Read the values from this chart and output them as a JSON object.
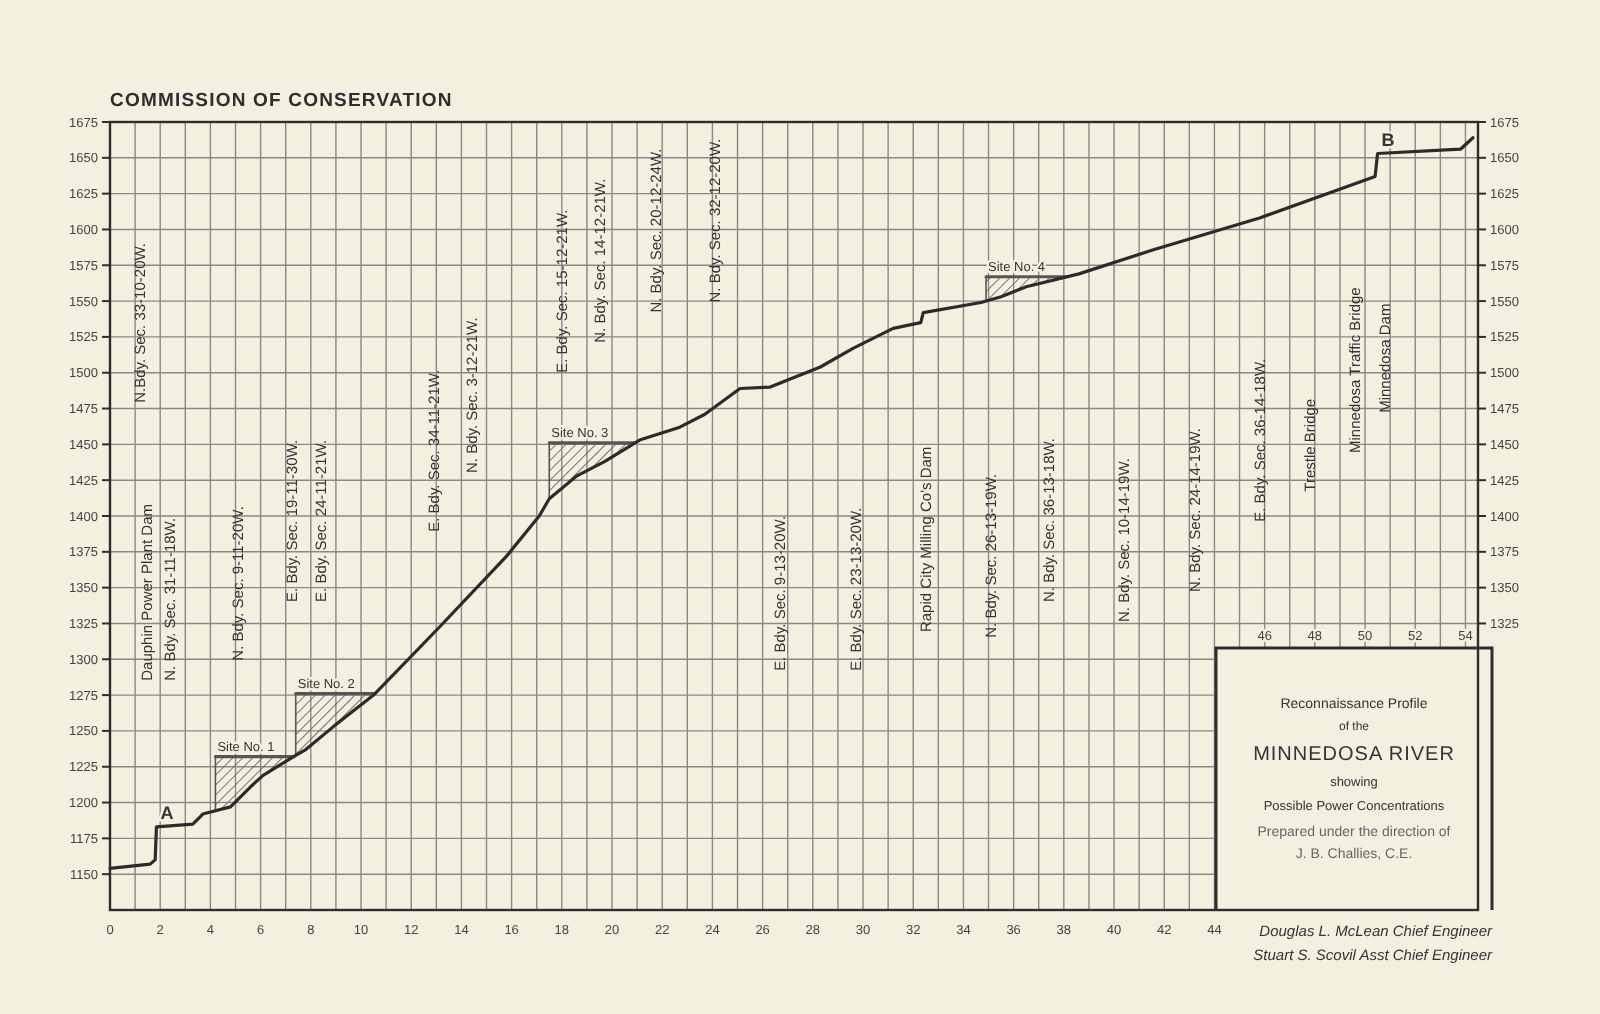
{
  "chart_data": {
    "type": "line",
    "title": "COMMISSION OF CONSERVATION",
    "x": [
      0,
      1.6,
      1.8,
      1.85,
      3.3,
      3.7,
      4.8,
      5.6,
      6.1,
      7.4,
      7.8,
      8.9,
      10.5,
      13.1,
      15.8,
      17.1,
      17.5,
      18.6,
      19.7,
      21.1,
      22.7,
      23.7,
      25.1,
      26.3,
      27.3,
      28.3,
      29.6,
      31.2,
      32.3,
      32.4,
      34.7,
      35.5,
      36.5,
      38.6,
      41.6,
      45.8,
      50.4,
      50.5,
      53.8,
      54.3
    ],
    "series": [
      {
        "color": "#2b2b2b",
        "values": [
          1154,
          1157,
          1160,
          1183,
          1185,
          1192,
          1197,
          1211,
          1219,
          1233,
          1237,
          1253,
          1275,
          1322,
          1372,
          1400,
          1412,
          1428,
          1438,
          1453,
          1462,
          1471,
          1489,
          1490,
          1497,
          1504,
          1517,
          1531,
          1535,
          1542,
          1549,
          1553,
          1560,
          1569,
          1586,
          1608,
          1637,
          1653,
          1656,
          1664
        ]
      },
      {
        "type": "line",
        "name": "Site No. 1",
        "color": "#555555",
        "x": [
          4.2,
          4.8,
          5.6,
          6.1,
          7.3
        ],
        "values": [
          1232,
          1232,
          1232,
          1232,
          1232
        ],
        "lower": [
          1194,
          1197,
          1211,
          1219,
          1232
        ],
        "upper": [
          1232,
          1232,
          1232,
          1232,
          1232
        ]
      },
      {
        "type": "line",
        "name": "Site No. 2",
        "color": "#555555",
        "x": [
          7.4,
          7.8,
          8.9,
          10.55
        ],
        "values": [
          1276,
          1276,
          1276,
          1276
        ],
        "lower": [
          1233,
          1237,
          1253,
          1276
        ],
        "upper": [
          1276,
          1276,
          1276,
          1276
        ]
      },
      {
        "type": "line",
        "name": "Site No. 3",
        "color": "#555555",
        "x": [
          17.5,
          18.6,
          19.7,
          20.9
        ],
        "values": [
          1451,
          1451,
          1451,
          1451
        ],
        "lower": [
          1412,
          1428,
          1438,
          1451
        ],
        "upper": [
          1451,
          1451,
          1451,
          1451
        ]
      },
      {
        "type": "line",
        "name": "Site No. 4",
        "color": "#555555",
        "x": [
          34.9,
          35.5,
          36.5,
          38.1
        ],
        "values": [
          1567,
          1567,
          1567,
          1567
        ],
        "lower": [
          1550,
          1553,
          1560,
          1567
        ],
        "upper": [
          1567,
          1567,
          1567,
          1567
        ]
      }
    ],
    "xlim": [
      0,
      54.5
    ],
    "ylim": [
      1125,
      1675
    ],
    "xticks": [
      0,
      2,
      4,
      6,
      8,
      10,
      12,
      14,
      16,
      18,
      20,
      22,
      24,
      26,
      28,
      30,
      32,
      34,
      36,
      38,
      40,
      42,
      44
    ],
    "x2lim": [
      0,
      54.5
    ],
    "x2ticks": [
      46,
      48,
      50,
      52,
      54
    ],
    "yticks": [
      1150,
      1175,
      1200,
      1225,
      1250,
      1275,
      1300,
      1325,
      1350,
      1375,
      1400,
      1425,
      1450,
      1475,
      1500,
      1525,
      1550,
      1575,
      1600,
      1625,
      1650,
      1675
    ],
    "y2lim": [
      1125,
      1675
    ],
    "y2ticks": [
      1325,
      1350,
      1375,
      1400,
      1425,
      1450,
      1475,
      1500,
      1525,
      1550,
      1575,
      1600,
      1625,
      1650,
      1675
    ],
    "grid": true,
    "marker": "none",
    "line_style": "solid",
    "annotations": [
      {
        "text": "A",
        "x": 1.85,
        "y": 1183
      },
      {
        "text": "B",
        "x": 50.5,
        "y": 1653
      },
      "N.Bdy. Sec. 33-10-20W.",
      "Dauphin Power Plant Dam",
      "N. Bdy. Sec. 31-11-18W.",
      "N. Bdy. Sec. 9-11-20W.",
      "E. Bdy. Sec. 19-11-30W.",
      "E. Bdy. Sec. 24-11-21W.",
      "E. Bdy. Sec. 34-11-21W.",
      "N. Bdy. Sec. 3-12-21W.",
      "E. Bdy. Sec. 15-12-21W.",
      "N. Bdy. Sec. 14-12-21W.",
      "N. Bdy. Sec. 20-12-24W.",
      "N. Bdy. Sec. 32-12-20W.",
      "E. Bdy. Sec. 9-13-20W.",
      "E. Bdy. Sec. 23-13-20W.",
      "Rapid City Milling Co's Dam",
      "N. Bdy. Sec. 26-13-19W.",
      "N. Bdy. Sec. 36-13-18W.",
      "N. Bdy. Sec. 10-14-19W.",
      "N. Bdy. Sec. 24-14-19W.",
      "E. Bdy. Sec. 36-14-18W.",
      "Trestle Bridge",
      "Minnedosa Traffic Bridge",
      "Minnedosa Dam",
      "Reconnaissance Profile",
      "of the",
      "MINNEDOSA RIVER",
      "showing",
      "Possible Power Concentrations",
      "Prepared under the direction of",
      "J. B. Challies, C.E.",
      "Douglas L. McLean Chief Engineer",
      "Stuart S. Scovil Asst Chief Engineer"
    ]
  }
}
